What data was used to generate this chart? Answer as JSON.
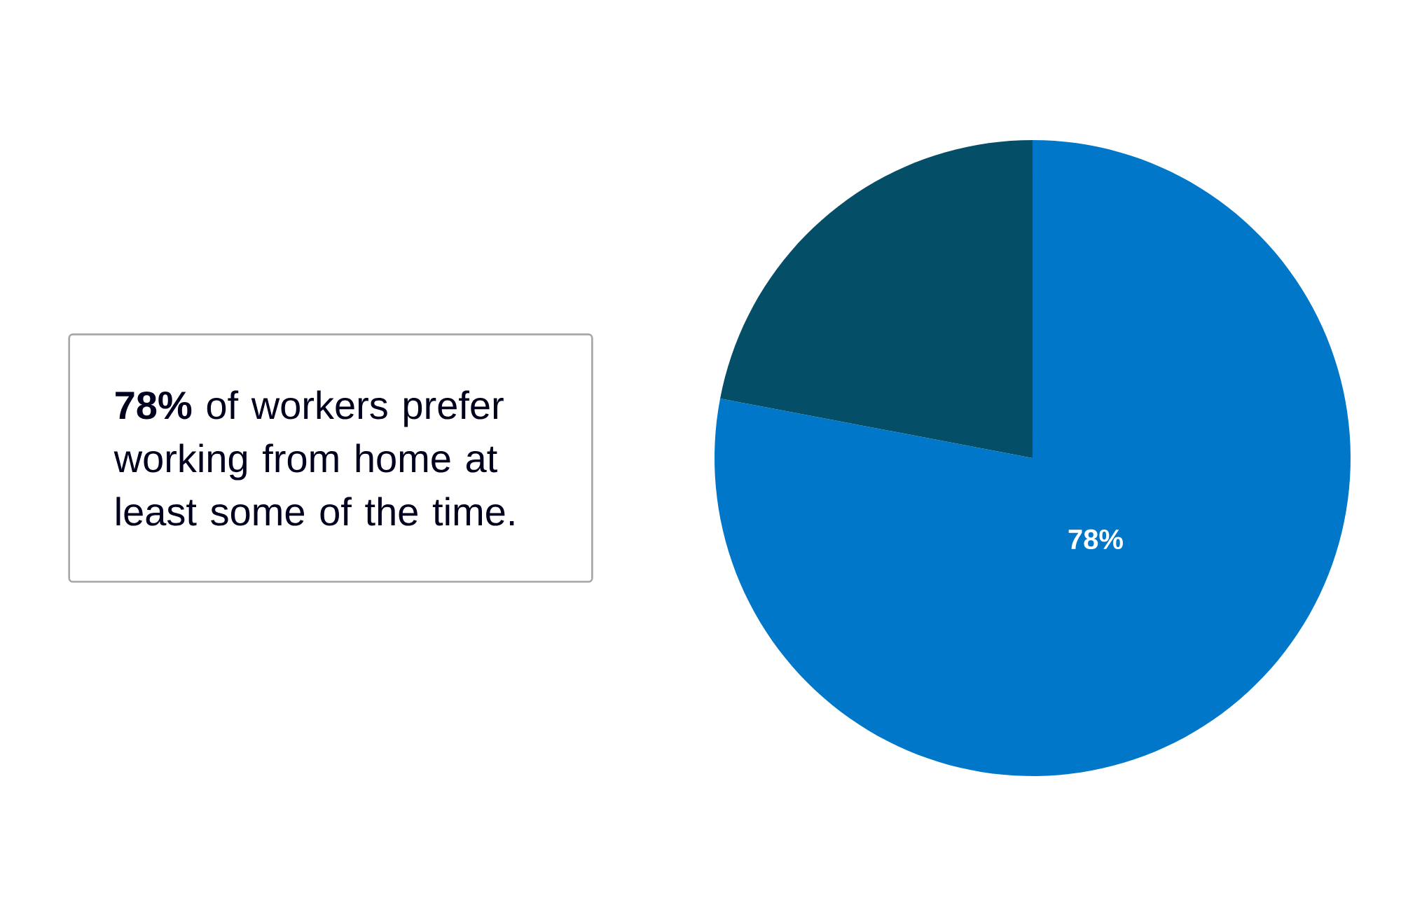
{
  "chart_data": {
    "type": "pie",
    "categories": [
      null,
      null
    ],
    "values": [
      78,
      22
    ],
    "colors": [
      "#0077c8",
      "#044f67"
    ],
    "value_labels": [
      "78%",
      null
    ],
    "annotations": [
      "**78%** of workers prefer working from home at least some of the time."
    ]
  }
}
